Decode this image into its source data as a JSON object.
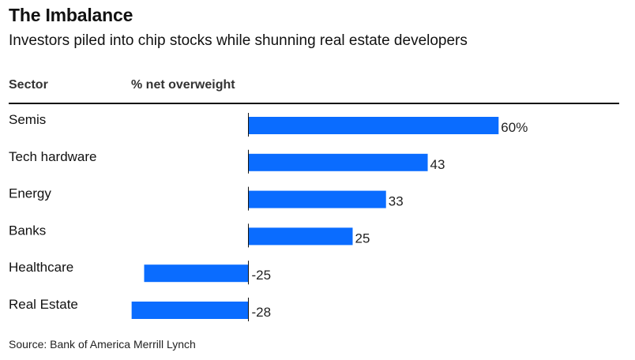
{
  "title": "The Imbalance",
  "subtitle": "Investors piled into chip stocks while shunning real estate developers",
  "columns": {
    "sector": "Sector",
    "value": "% net overweight"
  },
  "source": "Source: Bank of America Merrill Lynch",
  "colors": {
    "bar": "#0a6cff",
    "axis": "#111111",
    "text": "#111111",
    "value_text": "#222222"
  },
  "chart_data": {
    "type": "bar",
    "orientation": "horizontal",
    "title": "The Imbalance",
    "subtitle": "Investors piled into chip stocks while shunning real estate developers",
    "xlabel": "% net overweight",
    "ylabel": "Sector",
    "categories": [
      "Semis",
      "Tech hardware",
      "Energy",
      "Banks",
      "Healthcare",
      "Real Estate"
    ],
    "values": [
      60,
      43,
      33,
      25,
      -25,
      -28
    ],
    "value_labels": [
      "60%",
      "43",
      "33",
      "25",
      "-25",
      "-28"
    ],
    "xlim": [
      -28,
      60
    ],
    "grid": false,
    "legend": "none"
  }
}
